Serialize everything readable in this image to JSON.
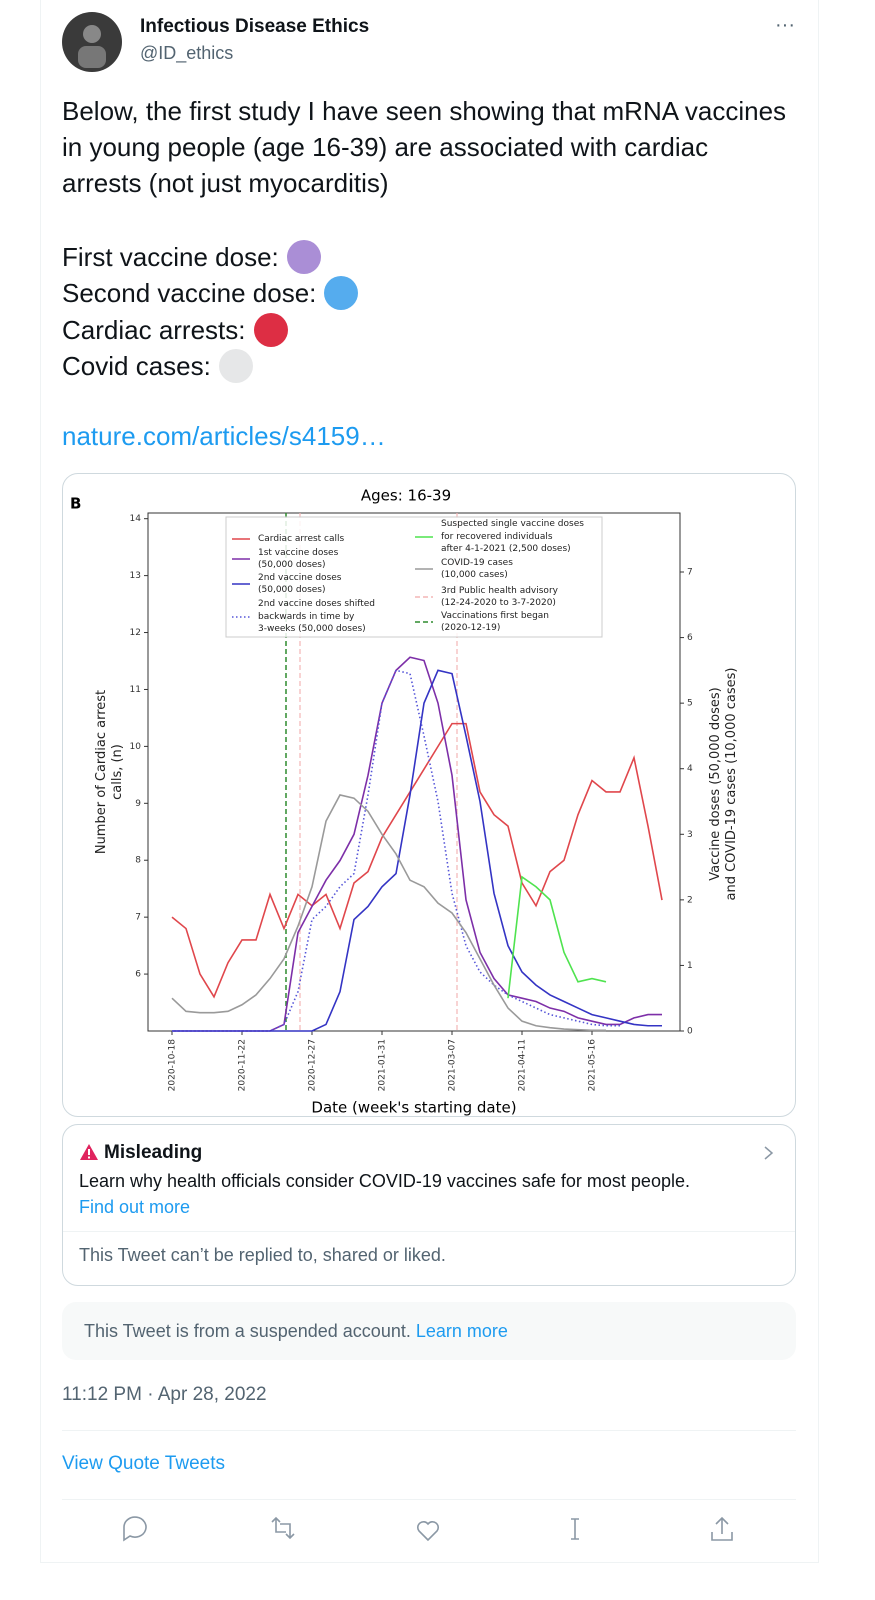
{
  "tweet": {
    "author": {
      "name": "Infectious Disease Ethics",
      "handle": "@ID_ethics"
    },
    "text": "Below, the first study I have seen showing that mRNA vaccines in young people (age 16-39) are associated with cardiac arrests (not just myocarditis)",
    "legend_lines": [
      {
        "label": "First vaccine dose:",
        "color": "#aa8ed6"
      },
      {
        "label": "Second vaccine dose:",
        "color": "#55acee"
      },
      {
        "label": "Cardiac arrests:",
        "color": "#dd2e44"
      },
      {
        "label": "Covid cases:",
        "color": "#e6e7e8"
      }
    ],
    "link": "nature.com/articles/s4159…"
  },
  "chart_data": {
    "type": "line",
    "panel_label": "B",
    "title": "Ages: 16-39",
    "xlabel": "Date (week's starting date)",
    "ylabel": "Number of Cardiac arrest\ncalls, (n)",
    "y2label": "Vaccine doses (50,000 doses)\nand COVID-19 cases (10,000 cases)",
    "categories": [
      "2020-10-18",
      null,
      null,
      null,
      null,
      "2020-11-22",
      null,
      null,
      null,
      null,
      "2020-12-27",
      null,
      null,
      null,
      null,
      "2021-01-31",
      null,
      null,
      null,
      null,
      "2021-03-07",
      null,
      null,
      null,
      null,
      "2021-04-11",
      null,
      null,
      null,
      null,
      "2021-05-16",
      null,
      null,
      null,
      null,
      null
    ],
    "ylim": [
      5,
      14.1
    ],
    "yticks": [
      6,
      7,
      8,
      9,
      10,
      11,
      12,
      13,
      14
    ],
    "y2lim": [
      0,
      7.9
    ],
    "y2ticks": [
      0,
      1,
      2,
      3,
      4,
      5,
      6,
      7
    ],
    "grid": false,
    "series": [
      {
        "name": "Cardiac arrest calls",
        "color": "#e0474c",
        "dash": "solid",
        "axis": "y",
        "values": [
          7.0,
          6.8,
          6.0,
          5.6,
          6.2,
          6.6,
          6.6,
          7.4,
          6.8,
          7.4,
          7.2,
          7.4,
          6.8,
          7.6,
          7.8,
          8.4,
          8.8,
          9.2,
          9.6,
          10.0,
          10.4,
          10.4,
          9.2,
          8.8,
          8.6,
          7.6,
          7.2,
          7.8,
          8.0,
          8.8,
          9.4,
          9.2,
          9.2,
          9.8,
          8.6,
          7.3
        ]
      },
      {
        "name": "1st vaccine doses\n(50,000 doses)",
        "color": "#7d2fa8",
        "dash": "solid",
        "axis": "y2",
        "values": [
          0,
          0,
          0,
          0,
          0,
          0,
          0,
          0,
          0.1,
          1.5,
          1.9,
          2.3,
          2.6,
          3.0,
          3.9,
          5.0,
          5.5,
          5.7,
          5.65,
          5.0,
          3.9,
          2.0,
          1.2,
          0.8,
          0.55,
          0.5,
          0.45,
          0.35,
          0.3,
          0.2,
          0.15,
          0.1,
          0.1,
          0.2,
          0.25,
          0.25
        ]
      },
      {
        "name": "2nd vaccine doses\n(50,000 doses)",
        "color": "#3434c4",
        "dash": "solid",
        "axis": "y2",
        "values": [
          0,
          0,
          0,
          0,
          0,
          0,
          0,
          0,
          0,
          0,
          0,
          0.1,
          0.6,
          1.7,
          1.9,
          2.2,
          2.4,
          3.6,
          5.0,
          5.5,
          5.45,
          4.5,
          3.5,
          2.1,
          1.3,
          0.9,
          0.7,
          0.55,
          0.45,
          0.35,
          0.25,
          0.2,
          0.15,
          0.1,
          0.08,
          0.08
        ]
      },
      {
        "name": "2nd vaccine doses shifted\nbackwards in time by\n3-weeks (50,000 doses)",
        "color": "#5555d8",
        "dash": "dotted",
        "axis": "y2",
        "values": [
          0,
          0,
          0,
          0,
          0,
          0,
          0,
          0,
          0.1,
          0.6,
          1.7,
          1.9,
          2.2,
          2.4,
          3.6,
          5.0,
          5.5,
          5.45,
          4.5,
          3.5,
          2.1,
          1.3,
          0.9,
          0.7,
          0.55,
          0.45,
          0.35,
          0.25,
          0.2,
          0.15,
          0.1,
          0.08,
          0.08,
          null,
          null,
          null
        ]
      },
      {
        "name": "Suspected single vaccine doses\nfor recovered individuals\nafter 4-1-2021 (2,500 doses)",
        "color": "#4fe34f",
        "dash": "solid",
        "axis": "y2",
        "values": [
          null,
          null,
          null,
          null,
          null,
          null,
          null,
          null,
          null,
          null,
          null,
          null,
          null,
          null,
          null,
          null,
          null,
          null,
          null,
          null,
          null,
          null,
          null,
          null,
          0.5,
          2.35,
          2.2,
          2.0,
          1.2,
          0.75,
          0.8,
          0.75,
          null,
          null,
          null,
          null
        ]
      },
      {
        "name": "COVID-19 cases\n(10,000 cases)",
        "color": "#9a9a9a",
        "dash": "solid",
        "axis": "y2",
        "values": [
          0.5,
          0.3,
          0.28,
          0.28,
          0.3,
          0.4,
          0.55,
          0.8,
          1.1,
          1.6,
          2.2,
          3.2,
          3.6,
          3.55,
          3.35,
          3.0,
          2.7,
          2.3,
          2.2,
          1.95,
          1.8,
          1.5,
          1.1,
          0.7,
          0.35,
          0.15,
          0.08,
          0.05,
          0.03,
          0.02,
          0.01,
          0.01,
          null,
          null,
          null,
          null
        ]
      }
    ],
    "reference_lines": [
      {
        "name": "3rd Public health advisory\n(12-24-2020 to 3-7-2020)",
        "color": "#f4b6b6",
        "dash": "dashed"
      },
      {
        "name": "Vaccinations first began\n(2020-12-19)",
        "color": "#2e8b2e",
        "dash": "dashed"
      }
    ]
  },
  "notice": {
    "title": "Misleading",
    "text": "Learn why health officials consider COVID-19 vaccines safe for most people.",
    "link": "Find out more"
  },
  "restriction": "This Tweet can’t be replied to, shared or liked.",
  "suspended": {
    "text": "This Tweet is from a suspended account.",
    "link": "Learn more"
  },
  "timestamp": "11:12 PM · Apr 28, 2022",
  "quote_tweets": "View Quote Tweets"
}
